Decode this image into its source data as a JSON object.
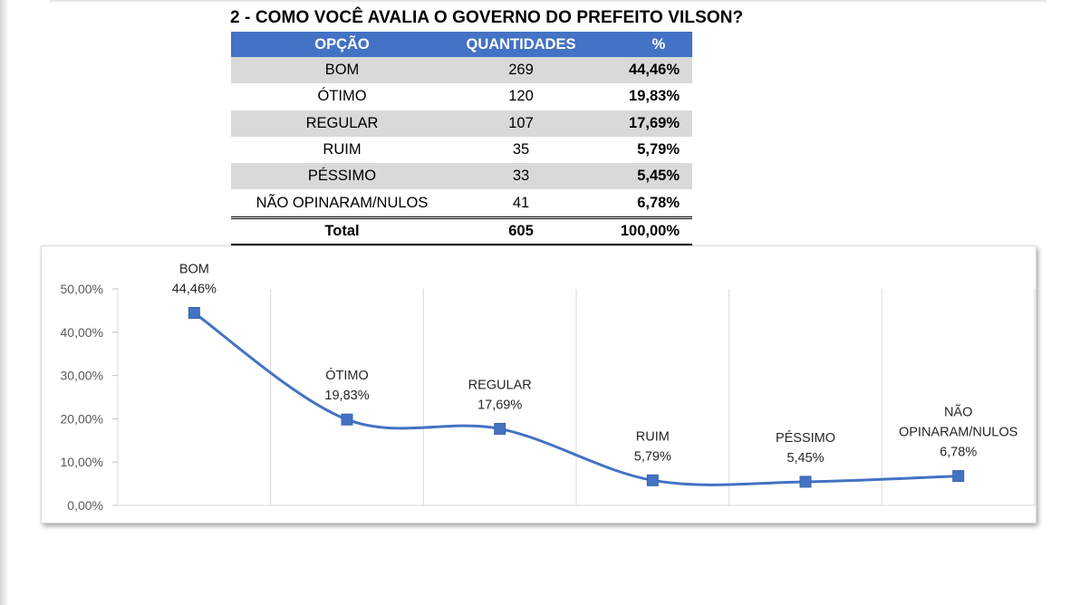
{
  "title": "2 - COMO VOCÊ AVALIA O GOVERNO DO PREFEITO VILSON?",
  "table": {
    "headers": [
      "OPÇÃO",
      "QUANTIDADES",
      "%"
    ],
    "rows": [
      {
        "option": "BOM",
        "qty": "269",
        "pct": "44,46%"
      },
      {
        "option": "ÓTIMO",
        "qty": "120",
        "pct": "19,83%"
      },
      {
        "option": "REGULAR",
        "qty": "107",
        "pct": "17,69%"
      },
      {
        "option": "RUIM",
        "qty": "35",
        "pct": "5,79%"
      },
      {
        "option": "PÉSSIMO",
        "qty": "33",
        "pct": "5,45%"
      },
      {
        "option": "NÃO OPINARAM/NULOS",
        "qty": "41",
        "pct": "6,78%"
      }
    ],
    "total": {
      "label": "Total",
      "qty": "605",
      "pct": "100,00%"
    }
  },
  "colors": {
    "header_bg": "#4472c4",
    "line": "#4472c4",
    "marker": "#4472c4",
    "shade": "#d9d9d9"
  },
  "chart_data": {
    "type": "line",
    "smooth": true,
    "categories": [
      "BOM",
      "ÓTIMO",
      "REGULAR",
      "RUIM",
      "PÉSSIMO",
      "NÃO OPINARAM/NULOS"
    ],
    "category_label_lines": [
      [
        "BOM"
      ],
      [
        "ÓTIMO"
      ],
      [
        "REGULAR"
      ],
      [
        "RUIM"
      ],
      [
        "PÉSSIMO"
      ],
      [
        "NÃO",
        "OPINARAM/NULOS"
      ]
    ],
    "values": [
      44.46,
      19.83,
      17.69,
      5.79,
      5.45,
      6.78
    ],
    "value_labels": [
      "44,46%",
      "19,83%",
      "17,69%",
      "5,79%",
      "5,45%",
      "6,78%"
    ],
    "ylim": [
      0,
      50
    ],
    "yticks": [
      0,
      10,
      20,
      30,
      40,
      50
    ],
    "ytick_labels": [
      "0,00%",
      "10,00%",
      "20,00%",
      "30,00%",
      "40,00%",
      "50,00%"
    ],
    "grid": "vertical",
    "legend": "none",
    "marker": "square"
  }
}
